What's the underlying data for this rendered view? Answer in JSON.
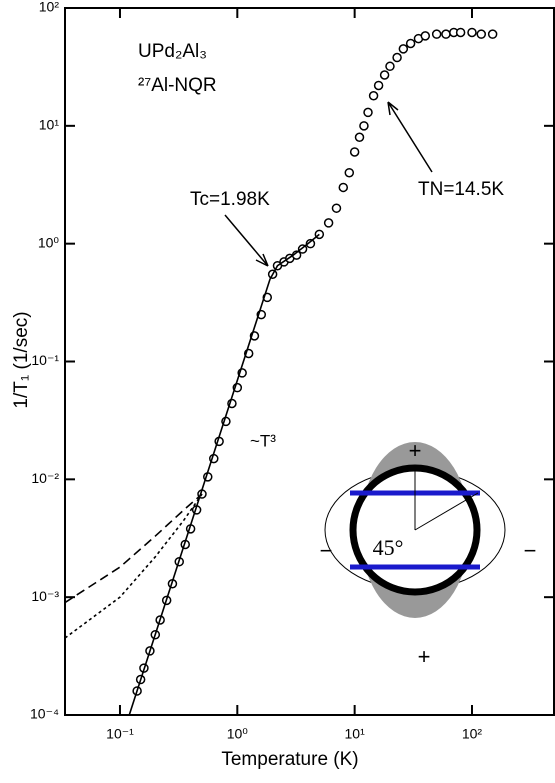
{
  "chart_data": {
    "type": "scatter",
    "xlabel": "Temperature (K)",
    "ylabel": "1/T₁ (1/sec)",
    "log_x": true,
    "log_y": true,
    "xlim": [
      0.034,
      500
    ],
    "ylim": [
      0.0001,
      100
    ],
    "xticks": [
      {
        "value": 0.1,
        "label": "10⁻¹"
      },
      {
        "value": 1,
        "label": "10⁰"
      },
      {
        "value": 10,
        "label": "10¹"
      },
      {
        "value": 100,
        "label": "10²"
      }
    ],
    "yticks": [
      {
        "value": 0.0001,
        "label": "10⁻⁴"
      },
      {
        "value": 0.001,
        "label": "10⁻³"
      },
      {
        "value": 0.01,
        "label": "10⁻²"
      },
      {
        "value": 0.1,
        "label": "10⁻¹"
      },
      {
        "value": 1,
        "label": "10⁰"
      },
      {
        "value": 10,
        "label": "10¹"
      },
      {
        "value": 100,
        "label": "10²"
      }
    ],
    "annotations": [
      "UPd₂Al₃",
      "²⁷Al-NQR",
      "Tc=1.98K",
      "TN=14.5K",
      "~T³"
    ],
    "series": [
      {
        "style": "points",
        "color": "#000000",
        "x": [
          0.14,
          0.15,
          0.16,
          0.18,
          0.2,
          0.22,
          0.25,
          0.28,
          0.32,
          0.36,
          0.4,
          0.45,
          0.5,
          0.56,
          0.63,
          0.7,
          0.8,
          0.9,
          1.0,
          1.1,
          1.25,
          1.4,
          1.6,
          1.8,
          2.0,
          2.2,
          2.5,
          2.8,
          3.2,
          3.6,
          4.2,
          5,
          6,
          7,
          8,
          9,
          10,
          11,
          12,
          13,
          14.5,
          16,
          18,
          20,
          23,
          26,
          30,
          35,
          40,
          50,
          60,
          70,
          80,
          100,
          120,
          150
        ],
        "values": [
          0.00016,
          0.0002,
          0.00025,
          0.00035,
          0.00048,
          0.00064,
          0.00094,
          0.0013,
          0.002,
          0.0028,
          0.0038,
          0.0055,
          0.0075,
          0.0105,
          0.015,
          0.021,
          0.031,
          0.044,
          0.06,
          0.08,
          0.117,
          0.165,
          0.25,
          0.35,
          0.55,
          0.65,
          0.7,
          0.75,
          0.8,
          0.9,
          1.0,
          1.2,
          1.5,
          2,
          3,
          4,
          6,
          8,
          10,
          13,
          18,
          22,
          27,
          32,
          38,
          45,
          50,
          55,
          58,
          60,
          60,
          62,
          62,
          62,
          60,
          60
        ]
      },
      {
        "style": "solid",
        "color": "#000000",
        "x": [
          0.12,
          1.9,
          2.2,
          3,
          4,
          5
        ],
        "values": [
          0.0001,
          0.5,
          0.65,
          0.8,
          1.0,
          1.2
        ]
      },
      {
        "style": "dashed",
        "color": "#000000",
        "x": [
          0.034,
          0.1,
          0.2,
          0.35,
          0.5
        ],
        "values": [
          0.0009,
          0.0018,
          0.0033,
          0.0055,
          0.0075
        ]
      },
      {
        "style": "dotted",
        "color": "#000000",
        "x": [
          0.034,
          0.1,
          0.2,
          0.35,
          0.5
        ],
        "values": [
          0.00045,
          0.001,
          0.0022,
          0.0045,
          0.0075
        ]
      }
    ]
  },
  "inset": {
    "angle_label": "45°",
    "plus": "+",
    "minus": "−"
  }
}
